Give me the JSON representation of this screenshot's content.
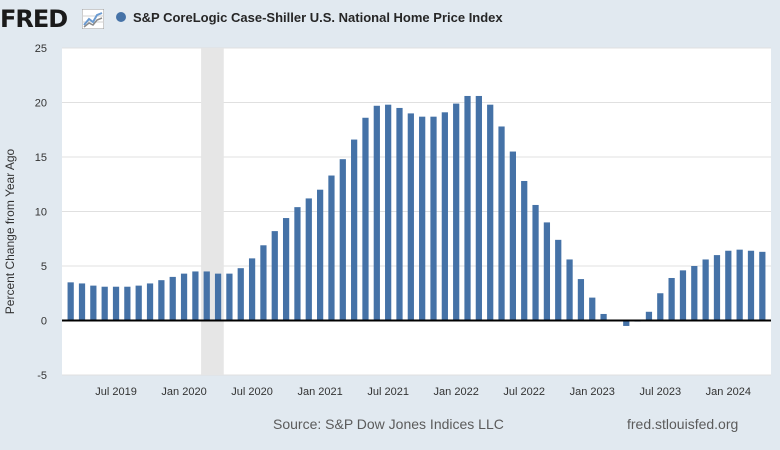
{
  "header": {
    "logo_text": "FRED",
    "logo_icon": "line-graph-icon",
    "series_title": "S&P CoreLogic Case-Shiller U.S. National Home Price Index"
  },
  "footer": {
    "source": "Source: S&P Dow Jones Indices LLC",
    "link": "fred.stlouisfed.org"
  },
  "colors": {
    "background": "#e1e9f0",
    "plot_background": "#ffffff",
    "bar": "#4572a7",
    "recession_shade": "#e6e6e6",
    "zero_line": "#000000"
  },
  "chart_data": {
    "type": "bar",
    "ylabel": "Percent Change from Year Ago",
    "ylim": [
      -5,
      25
    ],
    "yticks": [
      -5,
      0,
      5,
      10,
      15,
      20,
      25
    ],
    "grid": true,
    "recession_shading": {
      "start": "2020-03",
      "end": "2020-04"
    },
    "x_tick_labels": [
      {
        "label": "Jul 2019",
        "date": "2019-07"
      },
      {
        "label": "Jan 2020",
        "date": "2020-01"
      },
      {
        "label": "Jul 2020",
        "date": "2020-07"
      },
      {
        "label": "Jan 2021",
        "date": "2021-01"
      },
      {
        "label": "Jul 2021",
        "date": "2021-07"
      },
      {
        "label": "Jan 2022",
        "date": "2022-01"
      },
      {
        "label": "Jul 2022",
        "date": "2022-07"
      },
      {
        "label": "Jan 2023",
        "date": "2023-01"
      },
      {
        "label": "Jul 2023",
        "date": "2023-07"
      },
      {
        "label": "Jan 2024",
        "date": "2024-01"
      }
    ],
    "series": [
      {
        "x": [
          "2019-03",
          "2019-04",
          "2019-05",
          "2019-06",
          "2019-07",
          "2019-08",
          "2019-09",
          "2019-10",
          "2019-11",
          "2019-12",
          "2020-01",
          "2020-02",
          "2020-03",
          "2020-04",
          "2020-05",
          "2020-06",
          "2020-07",
          "2020-08",
          "2020-09",
          "2020-10",
          "2020-11",
          "2020-12",
          "2021-01",
          "2021-02",
          "2021-03",
          "2021-04",
          "2021-05",
          "2021-06",
          "2021-07",
          "2021-08",
          "2021-09",
          "2021-10",
          "2021-11",
          "2021-12",
          "2022-01",
          "2022-02",
          "2022-03",
          "2022-04",
          "2022-05",
          "2022-06",
          "2022-07",
          "2022-08",
          "2022-09",
          "2022-10",
          "2022-11",
          "2022-12",
          "2023-01",
          "2023-02",
          "2023-03",
          "2023-04",
          "2023-05",
          "2023-06",
          "2023-07",
          "2023-08",
          "2023-09",
          "2023-10",
          "2023-11",
          "2023-12",
          "2024-01",
          "2024-02",
          "2024-03",
          "2024-04"
        ],
        "values": [
          3.5,
          3.4,
          3.2,
          3.1,
          3.1,
          3.1,
          3.2,
          3.4,
          3.7,
          4.0,
          4.3,
          4.5,
          4.5,
          4.3,
          4.3,
          4.8,
          5.7,
          6.9,
          8.2,
          9.4,
          10.4,
          11.2,
          12.0,
          13.3,
          14.8,
          16.6,
          18.6,
          19.7,
          19.8,
          19.5,
          19.0,
          18.7,
          18.7,
          19.1,
          19.9,
          20.6,
          20.6,
          19.8,
          17.8,
          15.5,
          12.8,
          10.6,
          9.0,
          7.4,
          5.6,
          3.8,
          2.1,
          0.6,
          0.0,
          -0.5,
          -0.1,
          0.8,
          2.5,
          3.9,
          4.6,
          5.0,
          5.6,
          6.0,
          6.4,
          6.5,
          6.4,
          6.3
        ]
      }
    ]
  }
}
